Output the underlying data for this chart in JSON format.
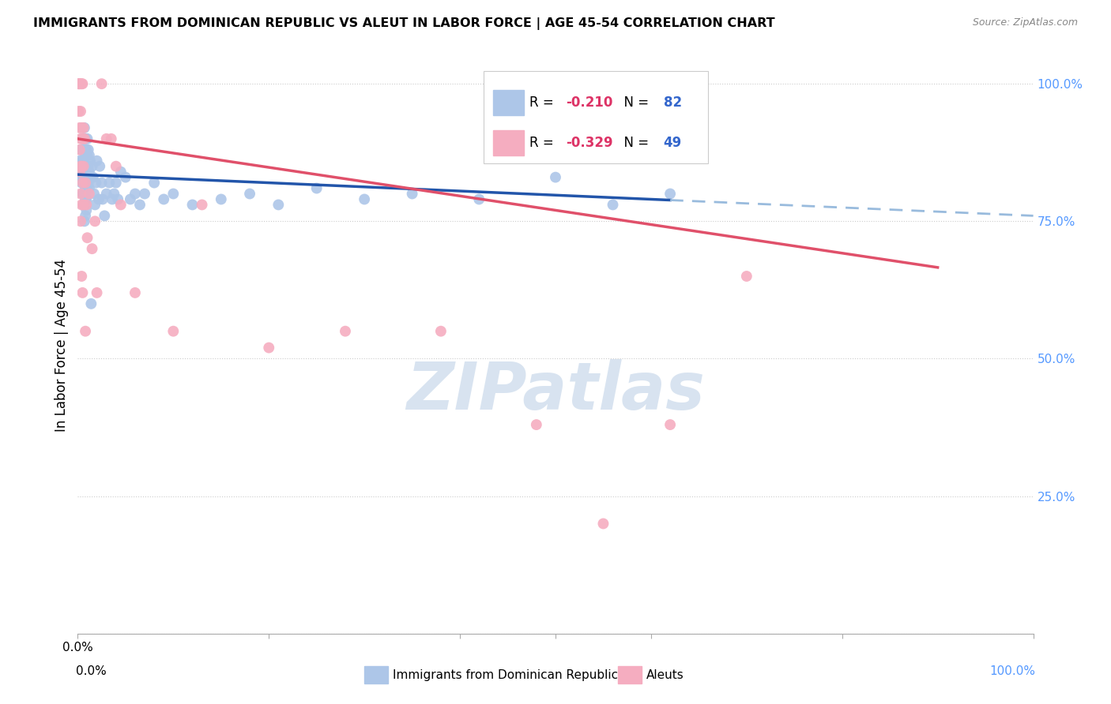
{
  "title": "IMMIGRANTS FROM DOMINICAN REPUBLIC VS ALEUT IN LABOR FORCE | AGE 45-54 CORRELATION CHART",
  "source": "Source: ZipAtlas.com",
  "ylabel": "In Labor Force | Age 45-54",
  "blue_R": -0.21,
  "blue_N": 82,
  "pink_R": -0.329,
  "pink_N": 49,
  "blue_color": "#adc6e8",
  "pink_color": "#f5adc0",
  "blue_line_color": "#2255aa",
  "pink_line_color": "#e0506a",
  "blue_dash_color": "#99bbdd",
  "watermark_text": "ZIPatlas",
  "watermark_color": "#c8d8ea",
  "grid_color": "#cccccc",
  "ytick_color": "#5599ff",
  "xtick_right_color": "#5599ff",
  "blue_scatter": [
    [
      0.002,
      0.86
    ],
    [
      0.003,
      0.88
    ],
    [
      0.003,
      0.84
    ],
    [
      0.004,
      0.85
    ],
    [
      0.004,
      0.82
    ],
    [
      0.005,
      0.9
    ],
    [
      0.005,
      0.86
    ],
    [
      0.005,
      0.83
    ],
    [
      0.005,
      0.8
    ],
    [
      0.006,
      0.88
    ],
    [
      0.006,
      0.85
    ],
    [
      0.006,
      0.83
    ],
    [
      0.006,
      0.8
    ],
    [
      0.006,
      0.78
    ],
    [
      0.007,
      0.92
    ],
    [
      0.007,
      0.88
    ],
    [
      0.007,
      0.85
    ],
    [
      0.007,
      0.83
    ],
    [
      0.007,
      0.8
    ],
    [
      0.007,
      0.78
    ],
    [
      0.007,
      0.75
    ],
    [
      0.008,
      0.9
    ],
    [
      0.008,
      0.87
    ],
    [
      0.008,
      0.84
    ],
    [
      0.008,
      0.81
    ],
    [
      0.008,
      0.79
    ],
    [
      0.008,
      0.76
    ],
    [
      0.009,
      0.88
    ],
    [
      0.009,
      0.85
    ],
    [
      0.009,
      0.82
    ],
    [
      0.009,
      0.79
    ],
    [
      0.009,
      0.77
    ],
    [
      0.01,
      0.9
    ],
    [
      0.01,
      0.87
    ],
    [
      0.01,
      0.84
    ],
    [
      0.01,
      0.81
    ],
    [
      0.011,
      0.88
    ],
    [
      0.011,
      0.85
    ],
    [
      0.011,
      0.82
    ],
    [
      0.012,
      0.87
    ],
    [
      0.012,
      0.84
    ],
    [
      0.012,
      0.81
    ],
    [
      0.013,
      0.86
    ],
    [
      0.013,
      0.83
    ],
    [
      0.014,
      0.6
    ],
    [
      0.015,
      0.85
    ],
    [
      0.016,
      0.83
    ],
    [
      0.017,
      0.8
    ],
    [
      0.018,
      0.78
    ],
    [
      0.019,
      0.82
    ],
    [
      0.02,
      0.86
    ],
    [
      0.022,
      0.79
    ],
    [
      0.023,
      0.85
    ],
    [
      0.025,
      0.82
    ],
    [
      0.026,
      0.79
    ],
    [
      0.028,
      0.76
    ],
    [
      0.03,
      0.8
    ],
    [
      0.033,
      0.82
    ],
    [
      0.036,
      0.79
    ],
    [
      0.038,
      0.8
    ],
    [
      0.04,
      0.82
    ],
    [
      0.042,
      0.79
    ],
    [
      0.045,
      0.84
    ],
    [
      0.05,
      0.83
    ],
    [
      0.055,
      0.79
    ],
    [
      0.06,
      0.8
    ],
    [
      0.065,
      0.78
    ],
    [
      0.07,
      0.8
    ],
    [
      0.08,
      0.82
    ],
    [
      0.09,
      0.79
    ],
    [
      0.1,
      0.8
    ],
    [
      0.12,
      0.78
    ],
    [
      0.15,
      0.79
    ],
    [
      0.18,
      0.8
    ],
    [
      0.21,
      0.78
    ],
    [
      0.25,
      0.81
    ],
    [
      0.3,
      0.79
    ],
    [
      0.35,
      0.8
    ],
    [
      0.42,
      0.79
    ],
    [
      0.5,
      0.83
    ],
    [
      0.56,
      0.78
    ],
    [
      0.62,
      0.8
    ]
  ],
  "pink_scatter": [
    [
      0.001,
      1.0
    ],
    [
      0.001,
      1.0
    ],
    [
      0.001,
      0.95
    ],
    [
      0.002,
      1.0
    ],
    [
      0.002,
      0.92
    ],
    [
      0.002,
      0.88
    ],
    [
      0.002,
      0.84
    ],
    [
      0.003,
      1.0
    ],
    [
      0.003,
      0.95
    ],
    [
      0.003,
      0.9
    ],
    [
      0.003,
      0.85
    ],
    [
      0.003,
      0.8
    ],
    [
      0.003,
      0.75
    ],
    [
      0.004,
      1.0
    ],
    [
      0.004,
      0.92
    ],
    [
      0.004,
      0.85
    ],
    [
      0.004,
      0.78
    ],
    [
      0.004,
      0.65
    ],
    [
      0.005,
      1.0
    ],
    [
      0.005,
      0.9
    ],
    [
      0.005,
      0.82
    ],
    [
      0.005,
      0.62
    ],
    [
      0.006,
      0.92
    ],
    [
      0.006,
      0.85
    ],
    [
      0.006,
      0.78
    ],
    [
      0.007,
      0.9
    ],
    [
      0.008,
      0.82
    ],
    [
      0.008,
      0.55
    ],
    [
      0.009,
      0.78
    ],
    [
      0.01,
      0.72
    ],
    [
      0.012,
      0.8
    ],
    [
      0.015,
      0.7
    ],
    [
      0.018,
      0.75
    ],
    [
      0.02,
      0.62
    ],
    [
      0.025,
      1.0
    ],
    [
      0.03,
      0.9
    ],
    [
      0.035,
      0.9
    ],
    [
      0.04,
      0.85
    ],
    [
      0.045,
      0.78
    ],
    [
      0.06,
      0.62
    ],
    [
      0.1,
      0.55
    ],
    [
      0.13,
      0.78
    ],
    [
      0.2,
      0.52
    ],
    [
      0.28,
      0.55
    ],
    [
      0.38,
      0.55
    ],
    [
      0.48,
      0.38
    ],
    [
      0.55,
      0.2
    ],
    [
      0.62,
      0.38
    ],
    [
      0.7,
      0.65
    ]
  ],
  "xlim": [
    0.0,
    1.0
  ],
  "ylim": [
    0.0,
    1.05
  ],
  "blue_trend_x_solid_end": 0.62,
  "pink_trend_x_end": 0.9
}
